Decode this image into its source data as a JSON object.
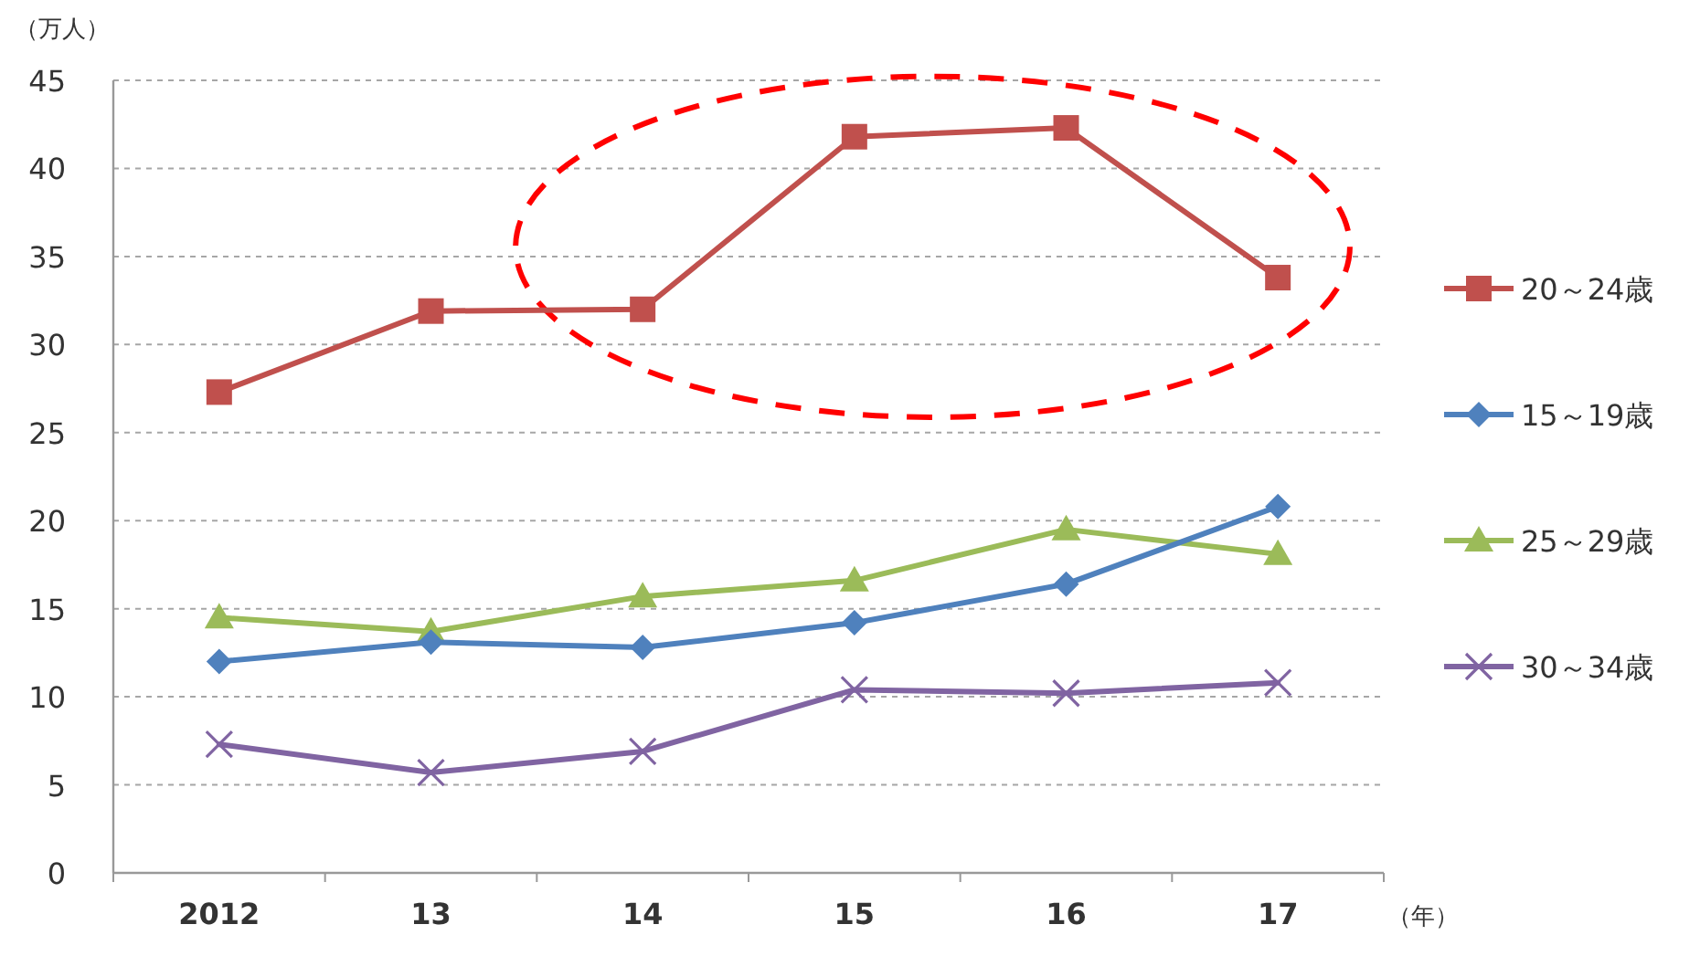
{
  "chart_data": {
    "type": "line",
    "ylabel": "（万人）",
    "xlabel": "（年）",
    "categories": [
      "2012",
      "13",
      "14",
      "15",
      "16",
      "17"
    ],
    "series": [
      {
        "name": "20～24歳",
        "color": "#c0504d",
        "marker": "square",
        "values": [
          27.3,
          31.9,
          32.0,
          41.8,
          42.3,
          33.8
        ]
      },
      {
        "name": "15～19歳",
        "color": "#4f81bd",
        "marker": "diamond",
        "values": [
          12.0,
          13.1,
          12.8,
          14.2,
          16.4,
          20.8
        ]
      },
      {
        "name": "25～29歳",
        "color": "#9bbb59",
        "marker": "triangle",
        "values": [
          14.5,
          13.7,
          15.7,
          16.6,
          19.5,
          18.1
        ]
      },
      {
        "name": "30～34歳",
        "color": "#8064a2",
        "marker": "cross",
        "values": [
          7.3,
          5.7,
          6.9,
          10.4,
          10.2,
          10.8
        ]
      }
    ],
    "ylim": [
      0,
      45
    ],
    "yticks": [
      0,
      5,
      10,
      15,
      20,
      25,
      30,
      35,
      40,
      45
    ],
    "grid": "y",
    "legend": "right",
    "line_style": "solid"
  }
}
